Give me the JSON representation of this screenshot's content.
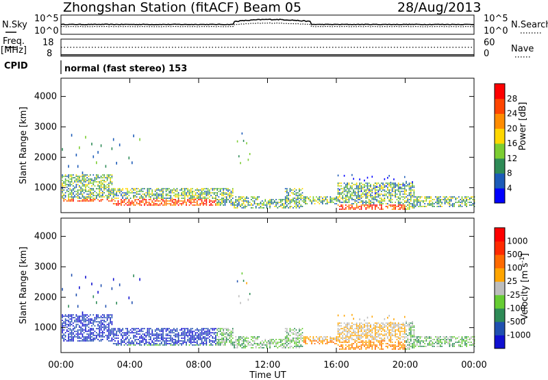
{
  "header": {
    "station": "Zhongshan Station (fitACF)",
    "beam": "Beam 05",
    "date": "28/Aug/2013"
  },
  "panels": {
    "nsky_label": "N.Sky",
    "nsky_ticks": [
      "10^5",
      "10^0"
    ],
    "nsearch_label": "N.Search",
    "nsearch_ticks": [
      "10^5",
      "10^0"
    ],
    "freq_label_top": "Freq.",
    "freq_label_units": "[MHz]",
    "freq_ticks": [
      "18",
      "8"
    ],
    "nave_label": "Nave",
    "nave_ticks": [
      "60",
      "0"
    ],
    "cpid_label": "CPID",
    "cpid_text": "normal (fast stereo) 153"
  },
  "chart_data": [
    {
      "type": "heatmap",
      "name": "power",
      "ylabel": "Slant Range [km]",
      "yticks": [
        "4000",
        "3000",
        "2000",
        "1000"
      ],
      "ylim": [
        180,
        4600
      ],
      "colorbar_label": "Power [dB]",
      "colorbar_ticks": [
        "28",
        "24",
        "20",
        "16",
        "12",
        "8",
        "4"
      ],
      "colors": [
        "#0000ff",
        "#1c5bb8",
        "#2e8b57",
        "#7ccd32",
        "#ffd700",
        "#ff8c00",
        "#ff4500",
        "#ff0000"
      ]
    },
    {
      "type": "heatmap",
      "name": "velocity",
      "ylabel": "Slant Range [km]",
      "yticks": [
        "4000",
        "3000",
        "2000",
        "1000"
      ],
      "ylim": [
        180,
        4600
      ],
      "colorbar_label": "Velocity [m s",
      "colorbar_label_sup": "-1",
      "colorbar_label_end": "]",
      "colorbar_ticks": [
        "1000",
        "500",
        "100",
        "25",
        "-25",
        "-100",
        "-500",
        "-1000"
      ],
      "colors": [
        "#1010d0",
        "#2050b0",
        "#2e8b57",
        "#66cc33",
        "#bdbdbd",
        "#ffa500",
        "#ff6a00",
        "#ff2a00",
        "#ff0000"
      ]
    }
  ],
  "xaxis": {
    "ticks": [
      "00:00",
      "04:00",
      "08:00",
      "12:00",
      "16:00",
      "20:00",
      "00:00"
    ],
    "label": "Time UT"
  }
}
